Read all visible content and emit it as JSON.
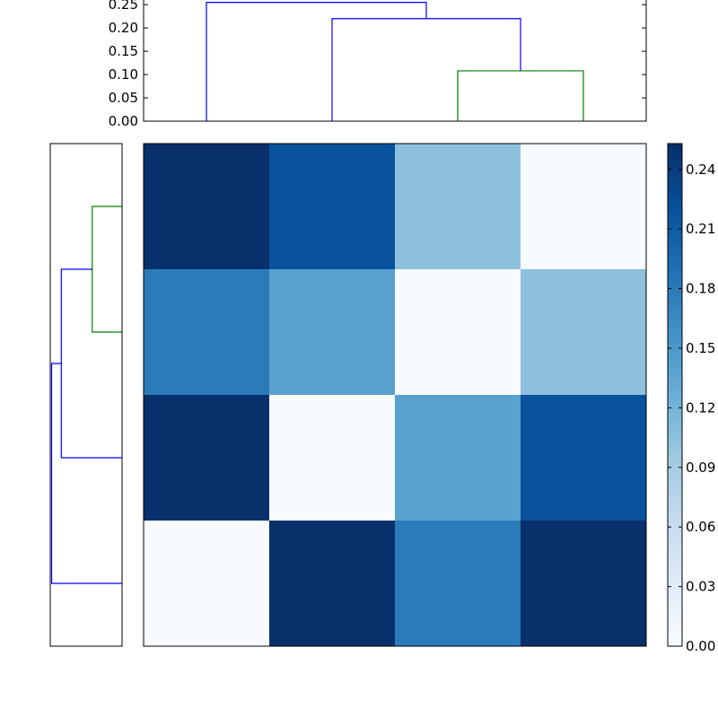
{
  "chart_data": {
    "type": "heatmap",
    "title": "",
    "xlabel": "",
    "ylabel": "",
    "colormap": "Blues",
    "grid": false,
    "matrix": [
      [
        0.253,
        0.22,
        0.105,
        0.0
      ],
      [
        0.18,
        0.14,
        0.0,
        0.105
      ],
      [
        0.253,
        0.0,
        0.14,
        0.22
      ],
      [
        0.0,
        0.253,
        0.18,
        0.253
      ]
    ],
    "colorbar": {
      "vmin": 0.0,
      "vmax": 0.253,
      "ticks": [
        0.0,
        0.03,
        0.06,
        0.09,
        0.12,
        0.15,
        0.18,
        0.21,
        0.24
      ],
      "tick_labels": [
        "0.00",
        "0.03",
        "0.06",
        "0.09",
        "0.12",
        "0.15",
        "0.18",
        "0.21",
        "0.24"
      ]
    },
    "top_dendrogram": {
      "ylim": [
        0.0,
        0.26
      ],
      "ticks": [
        0.0,
        0.05,
        0.1,
        0.15,
        0.2,
        0.25
      ],
      "tick_labels": [
        "0.00",
        "0.05",
        "0.10",
        "0.15",
        "0.20",
        "0.25"
      ],
      "leaves": 4,
      "merges": [
        {
          "left": 2,
          "right": 3,
          "height": 0.108,
          "color": "#008000"
        },
        {
          "left": 1,
          "right": "2-3",
          "height": 0.22,
          "color": "#0000ff"
        },
        {
          "left": 0,
          "right": "1-2-3",
          "height": 0.255,
          "color": "#0000ff"
        }
      ]
    },
    "left_dendrogram": {
      "leaves": 4,
      "merges": [
        {
          "left": 0,
          "right": 1,
          "height": 0.108,
          "color": "#008000"
        },
        {
          "left": "0-1",
          "right": 2,
          "height": 0.22,
          "color": "#0000ff"
        },
        {
          "left": "0-1-2",
          "right": 3,
          "height": 0.255,
          "color": "#0000ff"
        }
      ]
    }
  }
}
